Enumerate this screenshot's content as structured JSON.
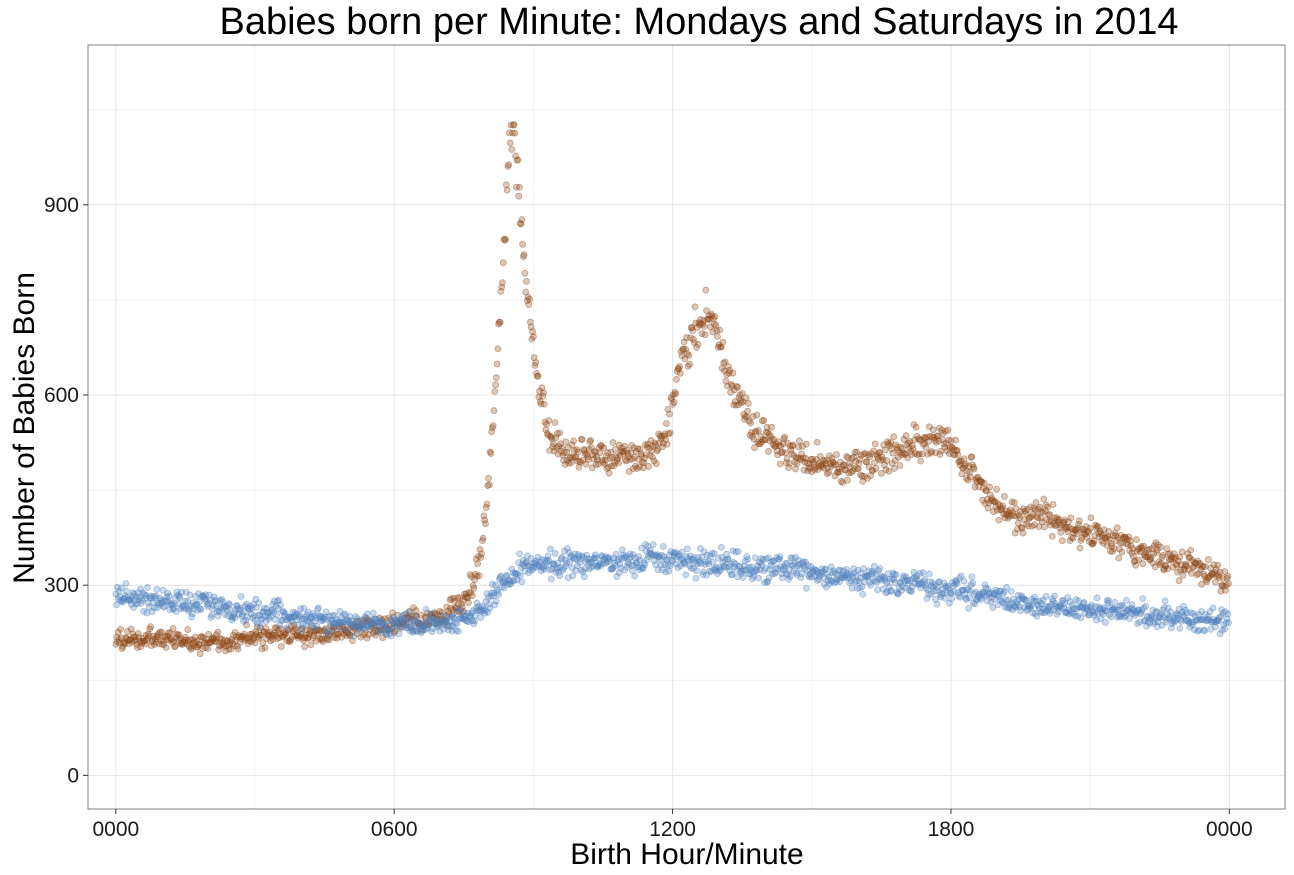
{
  "chart_data": {
    "type": "scatter",
    "title": "Babies born per Minute: Mondays and Saturdays in 2014",
    "xlabel": "Birth Hour/Minute",
    "ylabel": "Number of Babies Born",
    "x_ticks": [
      {
        "value": 0,
        "label": "0000"
      },
      {
        "value": 360,
        "label": "0600"
      },
      {
        "value": 720,
        "label": "1200"
      },
      {
        "value": 1080,
        "label": "1800"
      },
      {
        "value": 1440,
        "label": "0000"
      }
    ],
    "y_ticks": [
      {
        "value": 0,
        "label": "0"
      },
      {
        "value": 300,
        "label": "300"
      },
      {
        "value": 600,
        "label": "600"
      },
      {
        "value": 900,
        "label": "900"
      }
    ],
    "xlim": [
      -36,
      1512
    ],
    "ylim": [
      -53,
      1152
    ],
    "grid": true,
    "legend": "none",
    "series": [
      {
        "color": "#8B4513",
        "profile_points": [
          [
            0,
            215
          ],
          [
            60,
            215
          ],
          [
            120,
            210
          ],
          [
            180,
            218
          ],
          [
            240,
            222
          ],
          [
            300,
            228
          ],
          [
            360,
            238
          ],
          [
            420,
            248
          ],
          [
            450,
            275
          ],
          [
            470,
            330
          ],
          [
            480,
            430
          ],
          [
            490,
            600
          ],
          [
            500,
            800
          ],
          [
            508,
            960
          ],
          [
            513,
            1030
          ],
          [
            520,
            950
          ],
          [
            530,
            780
          ],
          [
            545,
            620
          ],
          [
            560,
            540
          ],
          [
            580,
            500
          ],
          [
            620,
            505
          ],
          [
            660,
            500
          ],
          [
            700,
            515
          ],
          [
            715,
            560
          ],
          [
            730,
            650
          ],
          [
            750,
            705
          ],
          [
            768,
            730
          ],
          [
            780,
            680
          ],
          [
            800,
            600
          ],
          [
            830,
            540
          ],
          [
            880,
            500
          ],
          [
            940,
            485
          ],
          [
            1000,
            505
          ],
          [
            1040,
            530
          ],
          [
            1080,
            515
          ],
          [
            1110,
            470
          ],
          [
            1140,
            425
          ],
          [
            1170,
            405
          ],
          [
            1200,
            410
          ],
          [
            1240,
            385
          ],
          [
            1290,
            370
          ],
          [
            1340,
            350
          ],
          [
            1400,
            325
          ],
          [
            1440,
            300
          ]
        ]
      },
      {
        "color": "#4F81BD",
        "profile_points": [
          [
            0,
            285
          ],
          [
            60,
            275
          ],
          [
            120,
            268
          ],
          [
            180,
            258
          ],
          [
            240,
            250
          ],
          [
            300,
            240
          ],
          [
            360,
            238
          ],
          [
            420,
            240
          ],
          [
            460,
            250
          ],
          [
            480,
            270
          ],
          [
            500,
            300
          ],
          [
            530,
            330
          ],
          [
            600,
            335
          ],
          [
            700,
            340
          ],
          [
            800,
            330
          ],
          [
            900,
            320
          ],
          [
            1000,
            305
          ],
          [
            1100,
            290
          ],
          [
            1200,
            265
          ],
          [
            1300,
            258
          ],
          [
            1400,
            245
          ],
          [
            1440,
            240
          ]
        ]
      }
    ]
  }
}
